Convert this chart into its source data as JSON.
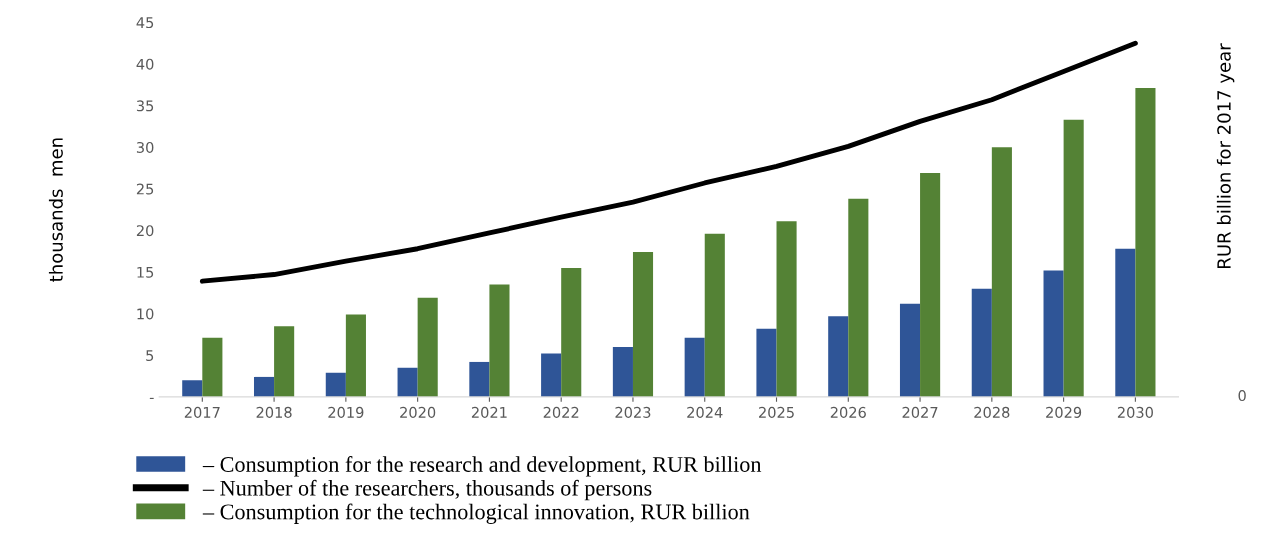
{
  "chart_data": {
    "type": "bar",
    "categories": [
      "2017",
      "2018",
      "2019",
      "2020",
      "2021",
      "2022",
      "2023",
      "2024",
      "2025",
      "2026",
      "2027",
      "2028",
      "2029",
      "2030"
    ],
    "series": [
      {
        "name": "– Consumption for the research and development, RUR billion",
        "color": "#2f5597",
        "values": [
          2.0,
          2.4,
          2.9,
          3.5,
          4.2,
          5.2,
          6.0,
          7.1,
          8.2,
          9.7,
          11.2,
          13.0,
          15.2,
          17.8
        ]
      },
      {
        "name": "– Number of the researchers, thousands of persons",
        "type": "line",
        "color": "#000000",
        "values": [
          13.9,
          14.7,
          16.3,
          17.8,
          19.7,
          21.6,
          23.4,
          25.7,
          27.7,
          30.1,
          33.1,
          35.7,
          39.1,
          42.5
        ]
      },
      {
        "name": "– Consumption for the technological innovation, RUR billion",
        "color": "#548235",
        "values": [
          7.1,
          8.5,
          9.9,
          11.9,
          13.5,
          15.5,
          17.4,
          19.6,
          21.1,
          23.8,
          26.9,
          30.0,
          33.3,
          37.1
        ]
      }
    ],
    "ylabel": "thousands  men",
    "y2label": "RUR billion for 2017 year",
    "annotations": [
      "0"
    ],
    "ylim": [
      0,
      45
    ],
    "yticks": [
      {
        "value": 0,
        "label": "-"
      },
      5,
      10,
      15,
      20,
      25,
      30,
      35,
      40,
      45
    ],
    "legend": "bottom",
    "line_style": "solid"
  }
}
